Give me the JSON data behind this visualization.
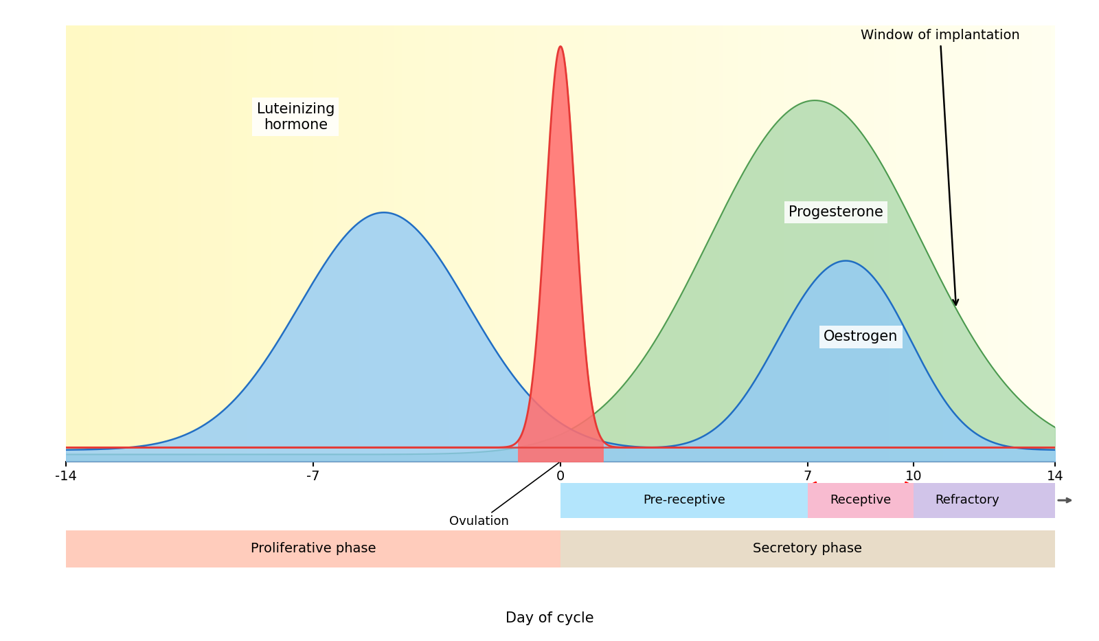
{
  "x_min": -14,
  "x_max": 14,
  "x_ticks": [
    -14,
    -7,
    0,
    7,
    10,
    14
  ],
  "lh_color": "#e53935",
  "lh_fill": "#e57373",
  "oestrogen_color": "#1565c0",
  "oestrogen_fill": "#90caf9",
  "progesterone_color": "#388e3c",
  "progesterone_fill": "#a5d6a7",
  "title_lh": "Luteinizing\nhormone",
  "title_progesterone": "Progesterone",
  "title_oestrogen": "Oestrogen",
  "title_window": "Window of implantation",
  "label_ovulation": "Ovulation",
  "label_prereceptive": "Pre-receptive",
  "label_receptive": "Receptive",
  "label_refractory": "Refractory",
  "label_proliferative": "Proliferative phase",
  "label_secretory": "Secretory phase",
  "label_day": "Day of cycle",
  "prereceptive_color": "#b3e5fc",
  "receptive_color": "#f8bbd0",
  "refractory_color": "#d1c4e9",
  "proliferative_color": "#ffccbc",
  "secretory_color": "#e8dcc8",
  "bg_color_left": "#fff9c4",
  "bg_color_right": "#fffff0"
}
